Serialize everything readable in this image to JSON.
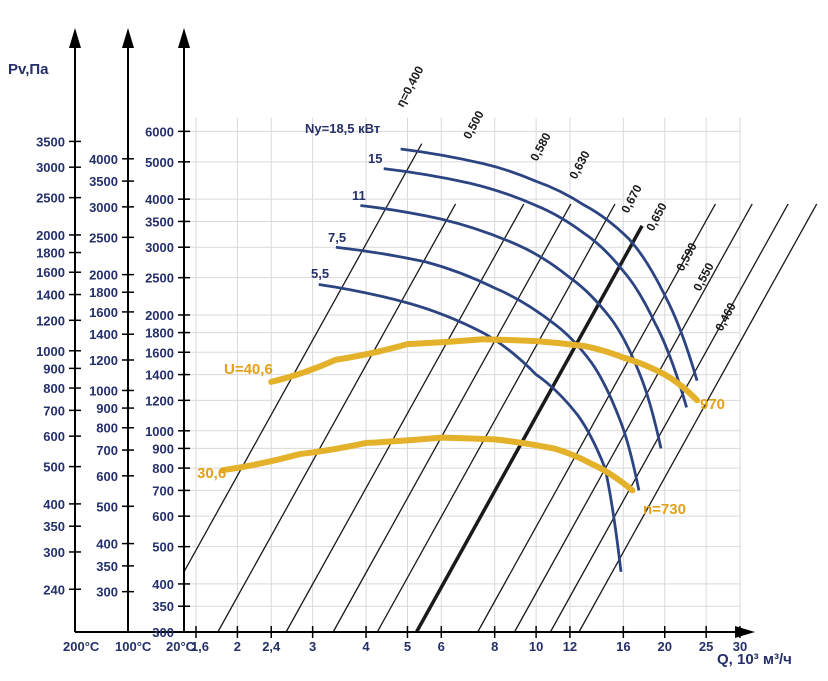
{
  "chart_data": {
    "type": "line",
    "title": "",
    "ylabel": "Pv,Па",
    "xlabel": "Q, 10³ м³/ч",
    "scale": "log-log",
    "xlim": [
      1.5,
      30
    ],
    "ylim": [
      300,
      6500
    ],
    "x_ticks": [
      "1,6",
      "2",
      "2,4",
      "3",
      "4",
      "5",
      "6",
      "8",
      "10",
      "12",
      "16",
      "20",
      "25",
      "30"
    ],
    "y_axes": [
      {
        "label": "20°C",
        "ticks": [
          "300",
          "350",
          "400",
          "500",
          "600",
          "700",
          "800",
          "900",
          "1000",
          "1200",
          "1400",
          "1600",
          "1800",
          "2000",
          "2500",
          "3000",
          "3500",
          "4000",
          "5000",
          "6000"
        ]
      },
      {
        "label": "100°C",
        "ticks": [
          "300",
          "350",
          "400",
          "500",
          "600",
          "700",
          "800",
          "900",
          "1000",
          "1200",
          "1400",
          "1600",
          "1800",
          "2000",
          "2500",
          "3000",
          "3500",
          "4000"
        ]
      },
      {
        "label": "200°C",
        "ticks": [
          "240",
          "300",
          "350",
          "400",
          "500",
          "600",
          "700",
          "800",
          "900",
          "1000",
          "1200",
          "1400",
          "1600",
          "1800",
          "2000",
          "2500",
          "3000",
          "3500"
        ]
      }
    ],
    "efficiency_lines": [
      "η=0,400",
      "0,500",
      "0,580",
      "0,630",
      "0,670",
      "0,650",
      "0,590",
      "0,550",
      "0,460"
    ],
    "power_curves": [
      {
        "label": "Nу=18,5 кВт",
        "x": [
          4.82,
          7.5,
          10,
          13,
          16.5,
          20,
          23.8
        ],
        "y": [
          5400,
          4950,
          4450,
          3850,
          3150,
          2250,
          1350
        ]
      },
      {
        "label": "15",
        "x": [
          4.4,
          7,
          10,
          13,
          16,
          19,
          22.5
        ],
        "y": [
          4800,
          4400,
          3850,
          3250,
          2600,
          1900,
          1150
        ]
      },
      {
        "label": "11",
        "x": [
          3.88,
          6,
          9,
          12,
          15,
          17.5,
          19.6
        ],
        "y": [
          3850,
          3550,
          3050,
          2500,
          1950,
          1400,
          900
        ]
      },
      {
        "label": "7,5",
        "x": [
          3.4,
          5.5,
          8,
          11,
          13.5,
          15.8,
          17.4
        ],
        "y": [
          3000,
          2750,
          2350,
          1900,
          1500,
          1050,
          700
        ]
      },
      {
        "label": "5,5",
        "x": [
          3.1,
          5,
          7.5,
          10,
          12.5,
          14.5,
          15.8
        ],
        "y": [
          2400,
          2150,
          1800,
          1400,
          1100,
          800,
          430
        ]
      }
    ],
    "speed_curves": [
      {
        "label": "n=970",
        "marker": "U=40,6",
        "x": [
          2.4,
          3.4,
          5,
          7.5,
          10,
          13,
          16,
          20,
          23.8
        ],
        "y": [
          1340,
          1530,
          1680,
          1730,
          1710,
          1660,
          1550,
          1400,
          1200
        ]
      },
      {
        "label": "n=730",
        "marker": "30,6",
        "x": [
          1.85,
          2.8,
          4,
          6,
          8,
          11,
          13.5,
          16.8
        ],
        "y": [
          790,
          870,
          930,
          960,
          950,
          900,
          820,
          700
        ]
      }
    ],
    "labels": {
      "ylabel": "Pv,Па",
      "xlabel": "Q, 10³ м³/ч",
      "col200": "200°C",
      "col100": "100°C",
      "col20": "20°C",
      "u_marker": "U=40,6",
      "low_marker": "30,6",
      "n_high": "970",
      "n_low": "n=730"
    },
    "colors": {
      "power": "#2c4582",
      "speed": "#e3b12a",
      "eta": "#1a1a1a",
      "axis": "#25306a"
    }
  }
}
